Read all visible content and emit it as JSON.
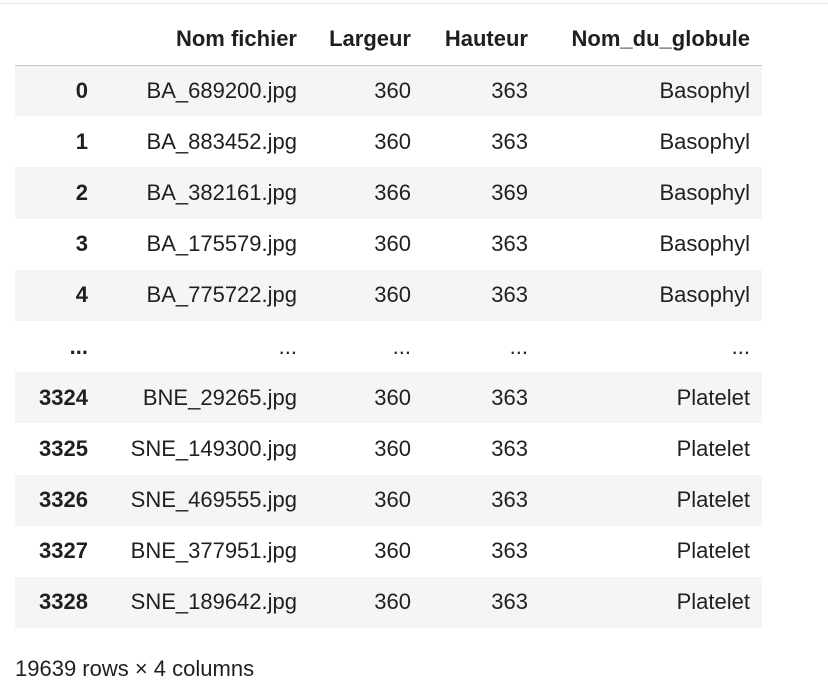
{
  "dataframe": {
    "columns": [
      "",
      "Nom fichier",
      "Largeur",
      "Hauteur",
      "Nom_du_globule"
    ],
    "rows": [
      [
        "0",
        "BA_689200.jpg",
        "360",
        "363",
        "Basophyl"
      ],
      [
        "1",
        "BA_883452.jpg",
        "360",
        "363",
        "Basophyl"
      ],
      [
        "2",
        "BA_382161.jpg",
        "366",
        "369",
        "Basophyl"
      ],
      [
        "3",
        "BA_175579.jpg",
        "360",
        "363",
        "Basophyl"
      ],
      [
        "4",
        "BA_775722.jpg",
        "360",
        "363",
        "Basophyl"
      ],
      [
        "...",
        "...",
        "...",
        "...",
        "..."
      ],
      [
        "3324",
        "BNE_29265.jpg",
        "360",
        "363",
        "Platelet"
      ],
      [
        "3325",
        "SNE_149300.jpg",
        "360",
        "363",
        "Platelet"
      ],
      [
        "3326",
        "SNE_469555.jpg",
        "360",
        "363",
        "Platelet"
      ],
      [
        "3327",
        "BNE_377951.jpg",
        "360",
        "363",
        "Platelet"
      ],
      [
        "3328",
        "SNE_189642.jpg",
        "360",
        "363",
        "Platelet"
      ]
    ],
    "shape_text": "19639 rows × 4 columns"
  }
}
